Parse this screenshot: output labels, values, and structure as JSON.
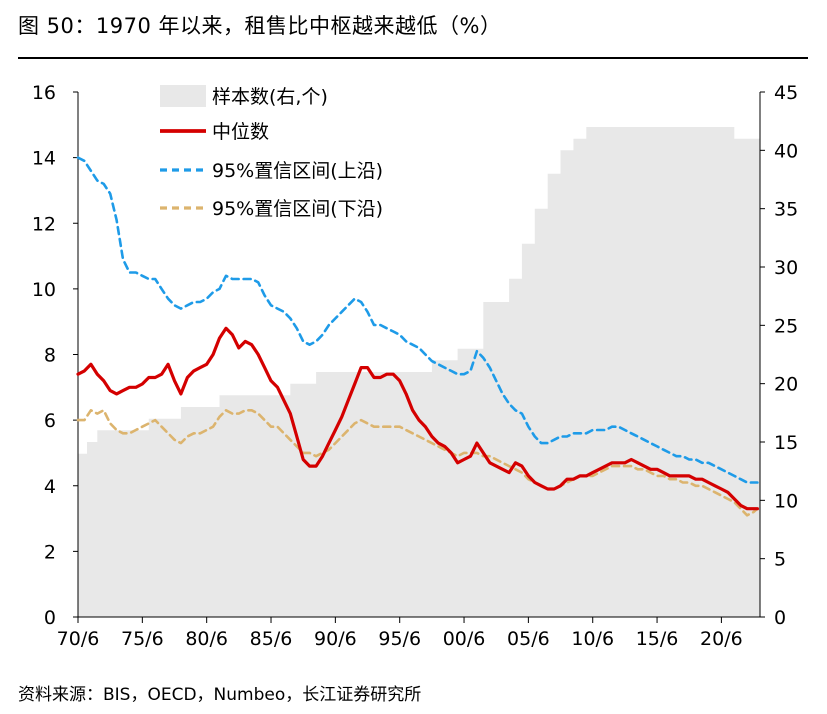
{
  "figure": {
    "title": "图 50：1970 年以来，租售比中枢越来越低（%）",
    "source": "资料来源：BIS，OECD，Numbeo，长江证券研究所"
  },
  "chart_data": {
    "type": "line",
    "title": "",
    "xlabel": "",
    "ylabel": "",
    "x_ticks": [
      "70/6",
      "75/6",
      "80/6",
      "85/6",
      "90/6",
      "95/6",
      "00/6",
      "05/6",
      "10/6",
      "15/6",
      "20/6"
    ],
    "x_range": [
      1970.5,
      2023.5
    ],
    "ylim": [
      0,
      16
    ],
    "y_ticks": [
      0,
      2,
      4,
      6,
      8,
      10,
      12,
      14,
      16
    ],
    "y2lim": [
      0,
      45
    ],
    "y2_ticks": [
      0,
      5,
      10,
      15,
      20,
      25,
      30,
      35,
      40,
      45
    ],
    "grid": false,
    "legend_position": "top-left",
    "colors": {
      "sample": "#e8e8e8",
      "median": "#d40000",
      "upper": "#1e9be8",
      "lower": "#dcb46e"
    },
    "series": [
      {
        "name": "样本数(右,个)",
        "type": "area",
        "axis": "right",
        "x": [
          1970.5,
          1971.2,
          1971.2,
          1972.0,
          1972.0,
          1976.0,
          1976.0,
          1978.5,
          1978.5,
          1981.5,
          1981.5,
          1987.0,
          1987.0,
          1989.0,
          1989.0,
          1998.0,
          1998.0,
          2000.0,
          2000.0,
          2002.0,
          2002.0,
          2004.0,
          2004.0,
          2005.0,
          2005.0,
          2006.0,
          2006.0,
          2007.0,
          2007.0,
          2008.0,
          2008.0,
          2009.0,
          2009.0,
          2010.0,
          2010.0,
          2021.5,
          2021.5,
          2023.5
        ],
        "values": [
          14,
          14,
          15,
          15,
          16,
          16,
          17,
          17,
          18,
          18,
          19,
          19,
          20,
          20,
          21,
          21,
          22,
          22,
          23,
          23,
          27,
          27,
          29,
          29,
          32,
          32,
          35,
          35,
          38,
          38,
          40,
          40,
          41,
          41,
          42,
          42,
          41,
          41
        ]
      },
      {
        "name": "中位数",
        "type": "line",
        "axis": "left",
        "x": [
          1970.5,
          1971.0,
          1971.5,
          1972.0,
          1972.5,
          1973.0,
          1973.5,
          1974.0,
          1974.5,
          1975.0,
          1975.5,
          1976.0,
          1976.5,
          1977.0,
          1977.5,
          1978.0,
          1978.5,
          1979.0,
          1979.5,
          1980.0,
          1980.5,
          1981.0,
          1981.5,
          1982.0,
          1982.5,
          1983.0,
          1983.5,
          1984.0,
          1984.5,
          1985.0,
          1985.5,
          1986.0,
          1986.5,
          1987.0,
          1987.5,
          1988.0,
          1988.5,
          1989.0,
          1989.5,
          1990.0,
          1990.5,
          1991.0,
          1991.5,
          1992.0,
          1992.5,
          1993.0,
          1993.5,
          1994.0,
          1994.5,
          1995.0,
          1995.5,
          1996.0,
          1996.5,
          1997.0,
          1997.5,
          1998.0,
          1998.5,
          1999.0,
          1999.5,
          2000.0,
          2000.5,
          2001.0,
          2001.5,
          2002.0,
          2002.5,
          2003.0,
          2003.5,
          2004.0,
          2004.5,
          2005.0,
          2005.5,
          2006.0,
          2006.5,
          2007.0,
          2007.5,
          2008.0,
          2008.5,
          2009.0,
          2009.5,
          2010.0,
          2010.5,
          2011.0,
          2011.5,
          2012.0,
          2012.5,
          2013.0,
          2013.5,
          2014.0,
          2014.5,
          2015.0,
          2015.5,
          2016.0,
          2016.5,
          2017.0,
          2017.5,
          2018.0,
          2018.5,
          2019.0,
          2019.5,
          2020.0,
          2020.5,
          2021.0,
          2021.5,
          2022.0,
          2022.5,
          2023.0,
          2023.3
        ],
        "values": [
          7.4,
          7.5,
          7.7,
          7.4,
          7.2,
          6.9,
          6.8,
          6.9,
          7.0,
          7.0,
          7.1,
          7.3,
          7.3,
          7.4,
          7.7,
          7.2,
          6.8,
          7.3,
          7.5,
          7.6,
          7.7,
          8.0,
          8.5,
          8.8,
          8.6,
          8.2,
          8.4,
          8.3,
          8.0,
          7.6,
          7.2,
          7.0,
          6.6,
          6.2,
          5.5,
          4.8,
          4.6,
          4.6,
          4.9,
          5.3,
          5.7,
          6.1,
          6.6,
          7.1,
          7.6,
          7.6,
          7.3,
          7.3,
          7.4,
          7.4,
          7.2,
          6.8,
          6.3,
          6.0,
          5.8,
          5.5,
          5.3,
          5.2,
          5.0,
          4.7,
          4.8,
          4.9,
          5.3,
          5.0,
          4.7,
          4.6,
          4.5,
          4.4,
          4.7,
          4.6,
          4.3,
          4.1,
          4.0,
          3.9,
          3.9,
          4.0,
          4.2,
          4.2,
          4.3,
          4.3,
          4.4,
          4.5,
          4.6,
          4.7,
          4.7,
          4.7,
          4.8,
          4.7,
          4.6,
          4.5,
          4.5,
          4.4,
          4.3,
          4.3,
          4.3,
          4.3,
          4.2,
          4.2,
          4.1,
          4.0,
          3.9,
          3.8,
          3.6,
          3.4,
          3.3,
          3.3,
          3.3
        ]
      },
      {
        "name": "95%置信区间(上沿)",
        "type": "line",
        "axis": "left",
        "x": [
          1970.5,
          1971.0,
          1971.5,
          1972.0,
          1972.5,
          1973.0,
          1973.5,
          1974.0,
          1974.5,
          1975.0,
          1975.5,
          1976.0,
          1976.5,
          1977.0,
          1977.5,
          1978.0,
          1978.5,
          1979.0,
          1979.5,
          1980.0,
          1980.5,
          1981.0,
          1981.5,
          1982.0,
          1982.5,
          1983.0,
          1983.5,
          1984.0,
          1984.5,
          1985.0,
          1985.5,
          1986.0,
          1986.5,
          1987.0,
          1987.5,
          1988.0,
          1988.5,
          1989.0,
          1989.5,
          1990.0,
          1990.5,
          1991.0,
          1991.5,
          1992.0,
          1992.5,
          1993.0,
          1993.5,
          1994.0,
          1994.5,
          1995.0,
          1995.5,
          1996.0,
          1996.5,
          1997.0,
          1997.5,
          1998.0,
          1998.5,
          1999.0,
          1999.5,
          2000.0,
          2000.5,
          2001.0,
          2001.5,
          2002.0,
          2002.5,
          2003.0,
          2003.5,
          2004.0,
          2004.5,
          2005.0,
          2005.5,
          2006.0,
          2006.5,
          2007.0,
          2007.5,
          2008.0,
          2008.5,
          2009.0,
          2009.5,
          2010.0,
          2010.5,
          2011.0,
          2011.5,
          2012.0,
          2012.5,
          2013.0,
          2013.5,
          2014.0,
          2014.5,
          2015.0,
          2015.5,
          2016.0,
          2016.5,
          2017.0,
          2017.5,
          2018.0,
          2018.5,
          2019.0,
          2019.5,
          2020.0,
          2020.5,
          2021.0,
          2021.5,
          2022.0,
          2022.5,
          2023.0,
          2023.3
        ],
        "values": [
          14.0,
          13.9,
          13.6,
          13.3,
          13.2,
          12.9,
          12.1,
          10.9,
          10.5,
          10.5,
          10.4,
          10.3,
          10.3,
          10.0,
          9.7,
          9.5,
          9.4,
          9.5,
          9.6,
          9.6,
          9.7,
          9.9,
          10.0,
          10.4,
          10.3,
          10.3,
          10.3,
          10.3,
          10.2,
          9.8,
          9.5,
          9.4,
          9.3,
          9.1,
          8.8,
          8.4,
          8.3,
          8.4,
          8.6,
          8.9,
          9.1,
          9.3,
          9.5,
          9.7,
          9.6,
          9.3,
          8.9,
          8.9,
          8.8,
          8.7,
          8.6,
          8.4,
          8.3,
          8.2,
          8.0,
          7.8,
          7.7,
          7.6,
          7.5,
          7.4,
          7.4,
          7.5,
          8.1,
          7.9,
          7.6,
          7.2,
          6.8,
          6.5,
          6.3,
          6.2,
          5.8,
          5.5,
          5.3,
          5.3,
          5.4,
          5.5,
          5.5,
          5.6,
          5.6,
          5.6,
          5.7,
          5.7,
          5.7,
          5.8,
          5.8,
          5.7,
          5.6,
          5.5,
          5.4,
          5.3,
          5.2,
          5.1,
          5.0,
          4.9,
          4.9,
          4.8,
          4.8,
          4.7,
          4.7,
          4.6,
          4.5,
          4.4,
          4.3,
          4.2,
          4.1,
          4.1,
          4.1
        ]
      },
      {
        "name": "95%置信区间(下沿)",
        "type": "line",
        "axis": "left",
        "x": [
          1970.5,
          1971.0,
          1971.5,
          1972.0,
          1972.5,
          1973.0,
          1973.5,
          1974.0,
          1974.5,
          1975.0,
          1975.5,
          1976.0,
          1976.5,
          1977.0,
          1977.5,
          1978.0,
          1978.5,
          1979.0,
          1979.5,
          1980.0,
          1980.5,
          1981.0,
          1981.5,
          1982.0,
          1982.5,
          1983.0,
          1983.5,
          1984.0,
          1984.5,
          1985.0,
          1985.5,
          1986.0,
          1986.5,
          1987.0,
          1987.5,
          1988.0,
          1988.5,
          1989.0,
          1989.5,
          1990.0,
          1990.5,
          1991.0,
          1991.5,
          1992.0,
          1992.5,
          1993.0,
          1993.5,
          1994.0,
          1994.5,
          1995.0,
          1995.5,
          1996.0,
          1996.5,
          1997.0,
          1997.5,
          1998.0,
          1998.5,
          1999.0,
          1999.5,
          2000.0,
          2000.5,
          2001.0,
          2001.5,
          2002.0,
          2002.5,
          2003.0,
          2003.5,
          2004.0,
          2004.5,
          2005.0,
          2005.5,
          2006.0,
          2006.5,
          2007.0,
          2007.5,
          2008.0,
          2008.5,
          2009.0,
          2009.5,
          2010.0,
          2010.5,
          2011.0,
          2011.5,
          2012.0,
          2012.5,
          2013.0,
          2013.5,
          2014.0,
          2014.5,
          2015.0,
          2015.5,
          2016.0,
          2016.5,
          2017.0,
          2017.5,
          2018.0,
          2018.5,
          2019.0,
          2019.5,
          2020.0,
          2020.5,
          2021.0,
          2021.5,
          2022.0,
          2022.5,
          2023.0,
          2023.3
        ],
        "values": [
          6.0,
          6.0,
          6.3,
          6.2,
          6.3,
          5.9,
          5.7,
          5.6,
          5.6,
          5.7,
          5.8,
          5.9,
          6.0,
          5.8,
          5.6,
          5.4,
          5.3,
          5.5,
          5.6,
          5.6,
          5.7,
          5.8,
          6.1,
          6.3,
          6.2,
          6.2,
          6.3,
          6.3,
          6.2,
          6.0,
          5.8,
          5.8,
          5.6,
          5.4,
          5.2,
          5.0,
          5.0,
          4.9,
          5.0,
          5.1,
          5.3,
          5.5,
          5.7,
          5.9,
          6.0,
          5.9,
          5.8,
          5.8,
          5.8,
          5.8,
          5.8,
          5.7,
          5.6,
          5.5,
          5.4,
          5.3,
          5.2,
          5.1,
          5.0,
          4.9,
          5.0,
          5.0,
          5.0,
          4.9,
          4.9,
          4.8,
          4.7,
          4.6,
          4.5,
          4.4,
          4.2,
          4.1,
          4.0,
          3.9,
          3.9,
          4.0,
          4.1,
          4.2,
          4.3,
          4.3,
          4.3,
          4.4,
          4.5,
          4.6,
          4.6,
          4.6,
          4.6,
          4.5,
          4.5,
          4.4,
          4.3,
          4.3,
          4.2,
          4.2,
          4.1,
          4.1,
          4.0,
          4.0,
          3.9,
          3.8,
          3.7,
          3.6,
          3.5,
          3.3,
          3.1,
          3.2,
          3.3
        ]
      }
    ]
  }
}
